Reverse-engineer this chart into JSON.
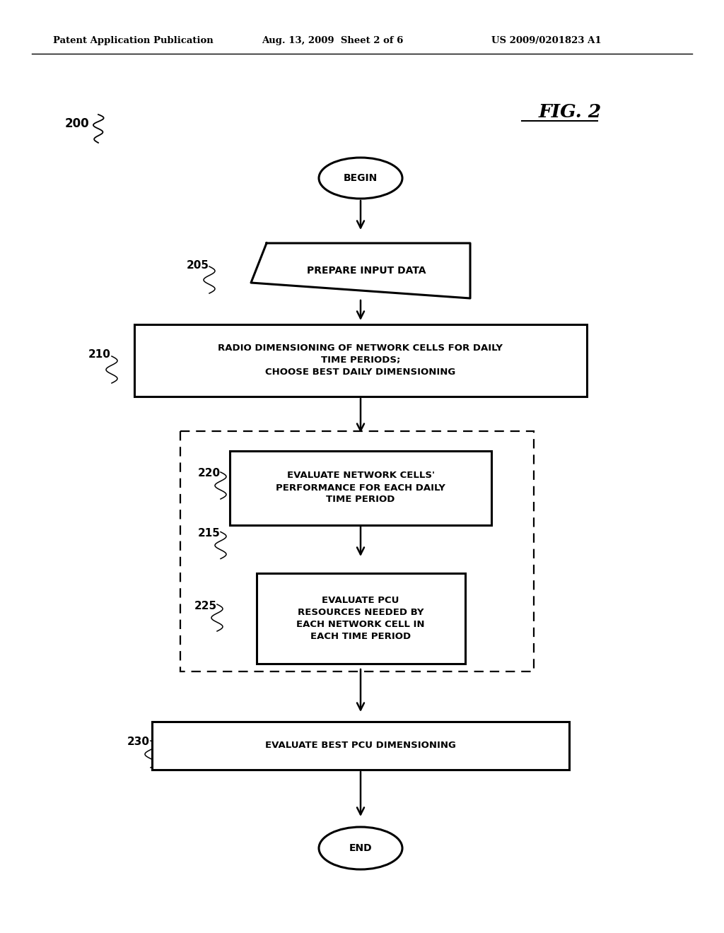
{
  "bg_color": "#ffffff",
  "header_left": "Patent Application Publication",
  "header_mid": "Aug. 13, 2009  Sheet 2 of 6",
  "header_right": "US 2009/0201823 A1",
  "fig_label": "FIG. 2",
  "diagram_label": "200",
  "begin_text": "BEGIN",
  "end_text": "END",
  "box205_text": "PREPARE INPUT DATA",
  "box210_text": "RADIO DIMENSIONING OF NETWORK CELLS FOR DAILY\nTIME PERIODS;\nCHOOSE BEST DAILY DIMENSIONING",
  "box220_text": "EVALUATE NETWORK CELLS'\nPERFORMANCE FOR EACH DAILY\nTIME PERIOD",
  "box225_text": "EVALUATE PCU\nRESOURCES NEEDED BY\nEACH NETWORK CELL IN\nEACH TIME PERIOD",
  "box230_text": "EVALUATE BEST PCU DIMENSIONING"
}
